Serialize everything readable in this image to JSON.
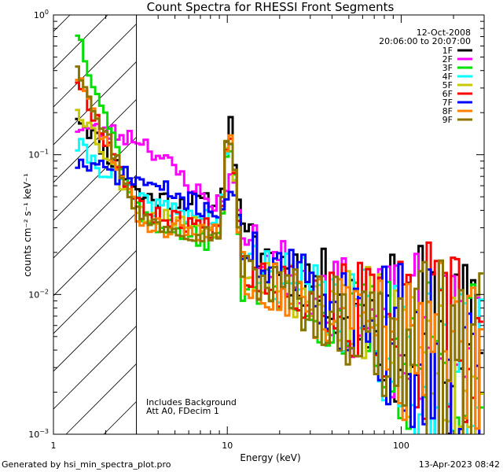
{
  "chart_data": {
    "type": "line",
    "title": "Count Spectra for RHESSI Front Segments",
    "xlabel": "Energy (keV)",
    "ylabel": "counts cm⁻² s⁻¹ keV⁻¹",
    "xscale": "log",
    "yscale": "log",
    "xlim": [
      1,
      300
    ],
    "ylim": [
      0.001,
      1
    ],
    "x_tick_labels": [
      {
        "value": 1,
        "label": "1"
      },
      {
        "value": 10,
        "label": "10"
      },
      {
        "value": 100,
        "label": "100"
      }
    ],
    "y_tick_labels": [
      {
        "value": 0.001,
        "base": "10",
        "exp": "−3"
      },
      {
        "value": 0.01,
        "base": "10",
        "exp": "−2"
      },
      {
        "value": 0.1,
        "base": "10",
        "exp": "−1"
      },
      {
        "value": 1,
        "base": "10",
        "exp": "0"
      }
    ],
    "date": "12-Oct-2008",
    "time_range": "20:06:00 to 20:07:00",
    "shaded_region_upper_kev": 3,
    "annotations": [
      "Includes Background",
      "Att A0, FDecim 1"
    ],
    "footer_left": "Generated by hsi_min_spectra_plot.pro",
    "footer_right": "13-Apr-2023 08:42",
    "series": [
      {
        "name": "1F",
        "color": "#000000",
        "start": 0.205,
        "plateau": 0.05,
        "dip": 0.045,
        "peak": 0.17,
        "tail": 0.0025,
        "seed": 11
      },
      {
        "name": "2F",
        "color": "#ff00ff",
        "start": 0.16,
        "plateau": 0.13,
        "dip": 0.045,
        "peak": 0.07,
        "tail": 0.002,
        "seed": 23
      },
      {
        "name": "3F",
        "color": "#00e000",
        "start": 0.85,
        "plateau": 0.035,
        "dip": 0.024,
        "peak": 0.12,
        "tail": 0.0022,
        "seed": 37
      },
      {
        "name": "4F",
        "color": "#00ffff",
        "start": 0.12,
        "plateau": 0.045,
        "dip": 0.035,
        "peak": 0.11,
        "tail": 0.002,
        "seed": 41
      },
      {
        "name": "5F",
        "color": "#c8c800",
        "start": 0.24,
        "plateau": 0.038,
        "dip": 0.03,
        "peak": 0.13,
        "tail": 0.0025,
        "seed": 53
      },
      {
        "name": "6F",
        "color": "#ff0000",
        "start": 0.38,
        "plateau": 0.04,
        "dip": 0.03,
        "peak": 0.15,
        "tail": 0.003,
        "seed": 67
      },
      {
        "name": "7F",
        "color": "#0000ff",
        "start": 0.088,
        "plateau": 0.065,
        "dip": 0.04,
        "peak": 0.05,
        "tail": 0.002,
        "seed": 71
      },
      {
        "name": "8F",
        "color": "#ff8000",
        "start": 0.4,
        "plateau": 0.032,
        "dip": 0.027,
        "peak": 0.14,
        "tail": 0.0024,
        "seed": 83
      },
      {
        "name": "9F",
        "color": "#8b7500",
        "start": 0.5,
        "plateau": 0.034,
        "dip": 0.027,
        "peak": 0.14,
        "tail": 0.0022,
        "seed": 97
      }
    ]
  }
}
